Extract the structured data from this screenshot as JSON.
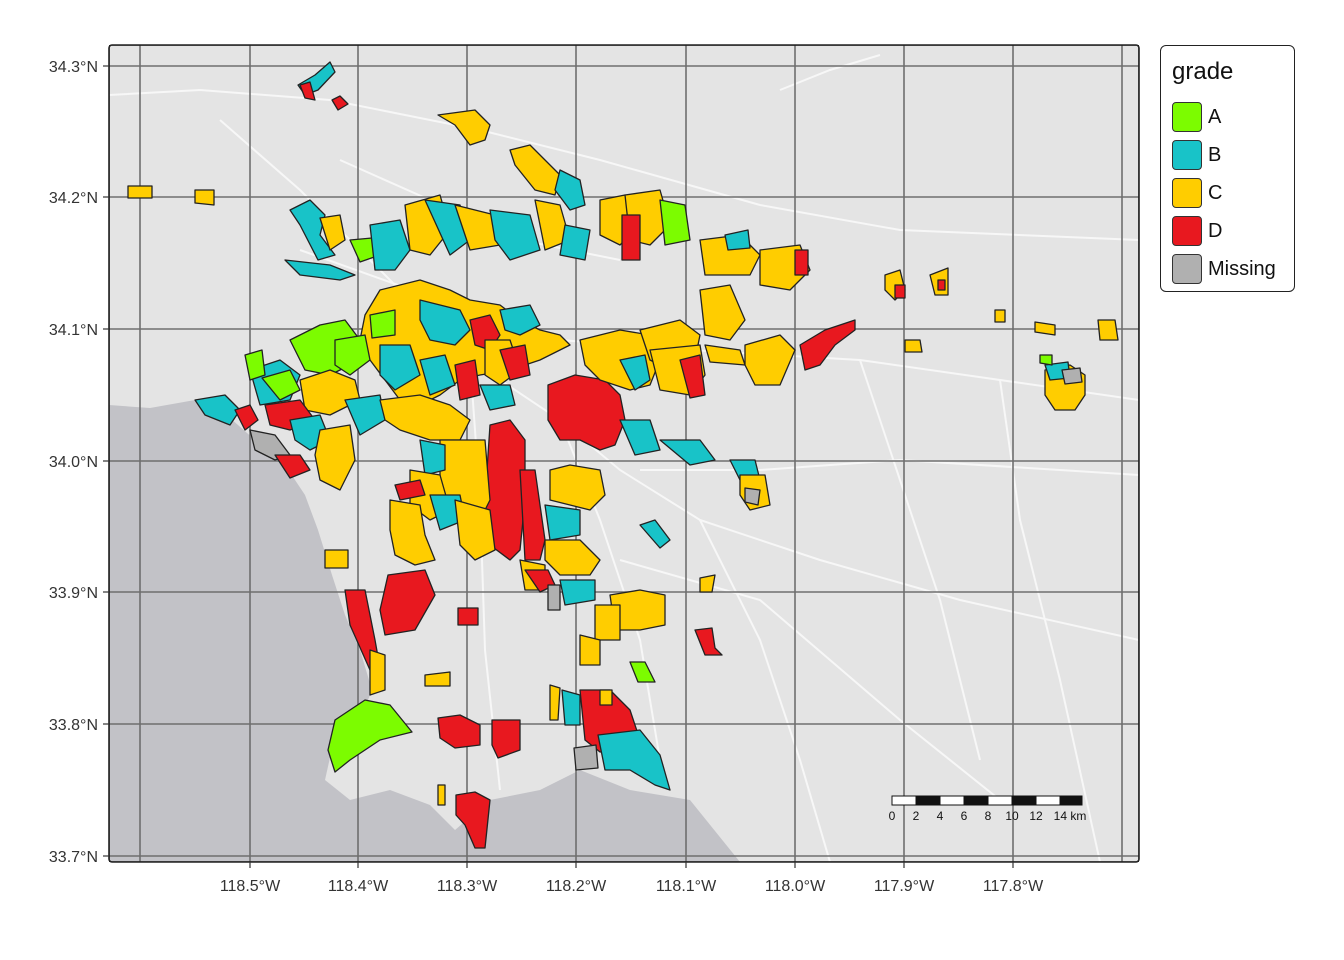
{
  "map": {
    "lat_ticks": [
      "34.3°N",
      "34.2°N",
      "34.1°N",
      "34.0°N",
      "33.9°N",
      "33.8°N",
      "33.7°N"
    ],
    "lon_ticks": [
      "118.5°W",
      "118.4°W",
      "118.3°W",
      "118.2°W",
      "118.1°W",
      "118.0°W",
      "117.9°W",
      "117.8°W"
    ],
    "colors": {
      "land": "#e4e4e4",
      "ocean": "#c2c2c7",
      "grid": "#6e6e6e",
      "roads": "#f5f5f5",
      "A": "#7cfc00",
      "B": "#18c3c8",
      "C": "#ffcd00",
      "D": "#e8181f",
      "Missing": "#b0b0b0"
    }
  },
  "legend": {
    "title": "grade",
    "items": [
      {
        "key": "A",
        "label": "A",
        "color": "#7cfc00"
      },
      {
        "key": "B",
        "label": "B",
        "color": "#18c3c8"
      },
      {
        "key": "C",
        "label": "C",
        "color": "#ffcd00"
      },
      {
        "key": "D",
        "label": "D",
        "color": "#e8181f"
      },
      {
        "key": "Missing",
        "label": "Missing",
        "color": "#b0b0b0"
      }
    ]
  },
  "scale_bar": {
    "labels": [
      "0",
      "2",
      "4",
      "6",
      "8",
      "10",
      "12",
      "14 km"
    ]
  }
}
